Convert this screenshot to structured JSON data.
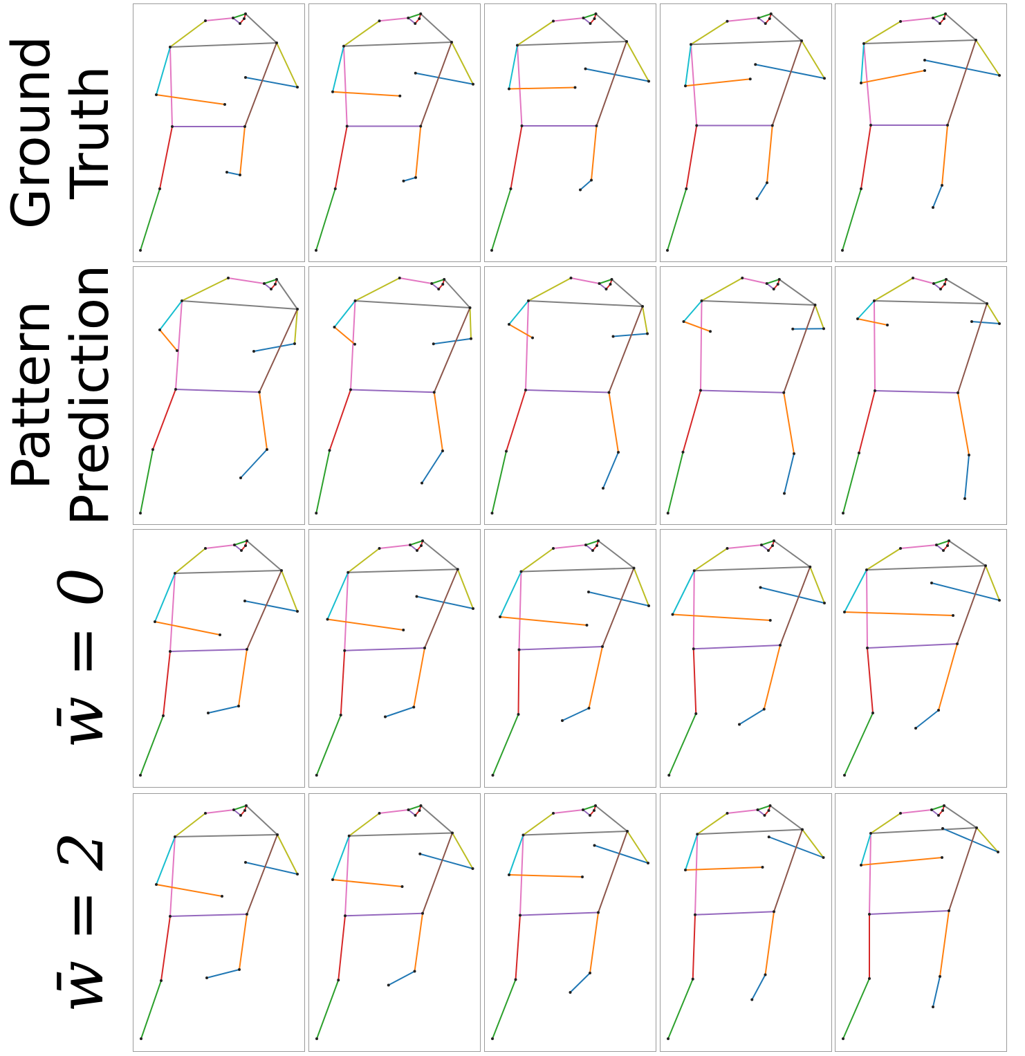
{
  "rows": [
    [
      "Ground",
      "Truth"
    ],
    [
      "Pattern",
      "Prediction"
    ],
    [
      "w̄ = 0"
    ],
    [
      "w̄ = 2"
    ]
  ]
}
